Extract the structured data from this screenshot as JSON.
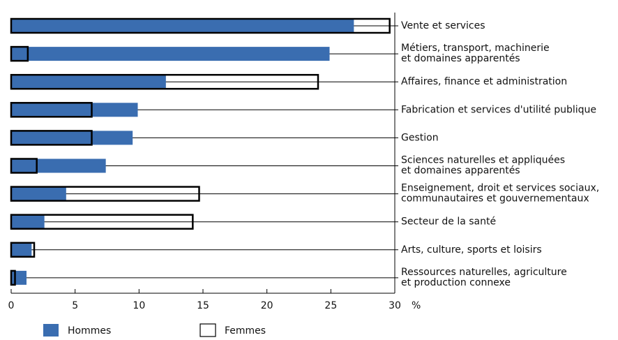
{
  "chart_data": {
    "type": "bar",
    "orientation": "horizontal",
    "overlap": true,
    "categories": [
      [
        "Vente et services"
      ],
      [
        "Métiers, transport, machinerie",
        "et domaines apparentés"
      ],
      [
        "Affaires, finance et administration"
      ],
      [
        "Fabrication et services d'utilité publique"
      ],
      [
        "Gestion"
      ],
      [
        "Sciences naturelles et appliquées",
        "et domaines apparentés"
      ],
      [
        "Enseignement, droit et services sociaux,",
        "communautaires et gouvernementaux"
      ],
      [
        "Secteur de la santé"
      ],
      [
        "Arts, culture, sports et loisirs"
      ],
      [
        "Ressources naturelles, agriculture",
        "et production connexe"
      ]
    ],
    "series": [
      {
        "name": "Hommes",
        "color": "#3a6db0",
        "values": [
          26.8,
          24.9,
          12.1,
          9.9,
          9.5,
          7.4,
          4.3,
          2.6,
          1.6,
          1.2
        ]
      },
      {
        "name": "Femmes",
        "color": "#000000",
        "values": [
          29.6,
          1.3,
          24.0,
          6.3,
          6.3,
          2.0,
          14.7,
          14.2,
          1.8,
          0.3
        ]
      }
    ],
    "xlim": [
      0,
      30
    ],
    "xticks": [
      0,
      5,
      10,
      15,
      20,
      25,
      30
    ],
    "x_unit": "%"
  }
}
